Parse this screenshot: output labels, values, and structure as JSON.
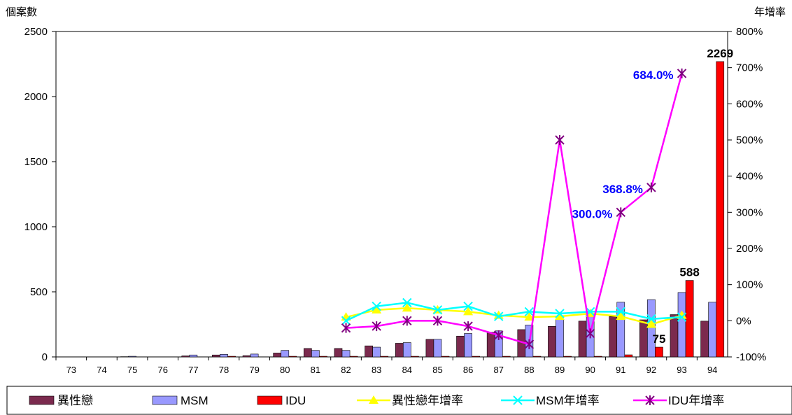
{
  "chart_data": {
    "type": "bar",
    "left_axis_label": "個案數",
    "right_axis_label": "年增率",
    "categories": [
      "73",
      "74",
      "75",
      "76",
      "77",
      "78",
      "79",
      "80",
      "81",
      "82",
      "83",
      "84",
      "85",
      "86",
      "87",
      "88",
      "89",
      "90",
      "91",
      "92",
      "93",
      "94"
    ],
    "y_ticks": [
      "0",
      "500",
      "1000",
      "1500",
      "2000",
      "2500"
    ],
    "y2_ticks": [
      "-100%",
      "0%",
      "100%",
      "200%",
      "300%",
      "400%",
      "500%",
      "600%",
      "700%",
      "800%"
    ],
    "ylim": [
      0,
      2500
    ],
    "y2lim": [
      -100,
      800
    ],
    "bar_series": [
      {
        "name": "異性戀",
        "color": "#7b2a4e",
        "values": [
          0,
          0,
          2,
          0,
          8,
          15,
          10,
          30,
          65,
          65,
          85,
          105,
          135,
          160,
          190,
          210,
          235,
          275,
          310,
          285,
          325,
          275
        ]
      },
      {
        "name": "MSM",
        "color": "#9999ff",
        "values": [
          0,
          0,
          5,
          0,
          15,
          20,
          22,
          50,
          50,
          50,
          75,
          110,
          135,
          180,
          200,
          245,
          290,
          330,
          420,
          440,
          495,
          420
        ]
      },
      {
        "name": "IDU",
        "color": "#ff0000",
        "values": [
          0,
          0,
          0,
          0,
          0,
          5,
          0,
          5,
          5,
          5,
          5,
          5,
          5,
          5,
          5,
          5,
          5,
          5,
          16,
          75,
          588,
          2269
        ]
      }
    ],
    "line_series": [
      {
        "name": "異性戀年增率",
        "color": "#ffff00",
        "marker": "triangle",
        "x": [
          "82",
          "83",
          "84",
          "85",
          "86",
          "87",
          "88",
          "89",
          "90",
          "91",
          "92",
          "93"
        ],
        "values": [
          10,
          30,
          35,
          30,
          25,
          15,
          10,
          12,
          20,
          12,
          -10,
          15
        ]
      },
      {
        "name": "MSM年增率",
        "color": "#00ffff",
        "marker": "x",
        "x": [
          "82",
          "83",
          "84",
          "85",
          "86",
          "87",
          "88",
          "89",
          "90",
          "91",
          "92",
          "93"
        ],
        "values": [
          0,
          40,
          50,
          30,
          40,
          12,
          25,
          20,
          25,
          25,
          5,
          10
        ]
      },
      {
        "name": "IDU年增率",
        "color": "#ff00ff",
        "marker": "star",
        "x": [
          "82",
          "83",
          "84",
          "85",
          "86",
          "87",
          "88",
          "89",
          "90",
          "91",
          "92",
          "93"
        ],
        "values": [
          -20,
          -15,
          0,
          0,
          -15,
          -40,
          -65,
          500,
          -35,
          300,
          368.8,
          684
        ]
      }
    ],
    "bar_labels": [
      {
        "text": "2269",
        "x": "94",
        "series": "IDU",
        "color": "#000000"
      },
      {
        "text": "588",
        "x": "93",
        "series": "IDU",
        "color": "#000000"
      },
      {
        "text": "75",
        "x": "92",
        "series": "IDU",
        "color": "#000000"
      }
    ],
    "line_labels": [
      {
        "text": "684.0%",
        "x": "93",
        "series": "IDU年增率",
        "color": "#0000ff"
      },
      {
        "text": "368.8%",
        "x": "92",
        "series": "IDU年增率",
        "color": "#0000ff"
      },
      {
        "text": "300.0%",
        "x": "91",
        "series": "IDU年增率",
        "color": "#0000ff"
      }
    ],
    "legend_position": "bottom",
    "legend": [
      "異性戀",
      "MSM",
      "IDU",
      "異性戀年增率",
      "MSM年增率",
      "IDU年增率"
    ],
    "grid": false
  }
}
